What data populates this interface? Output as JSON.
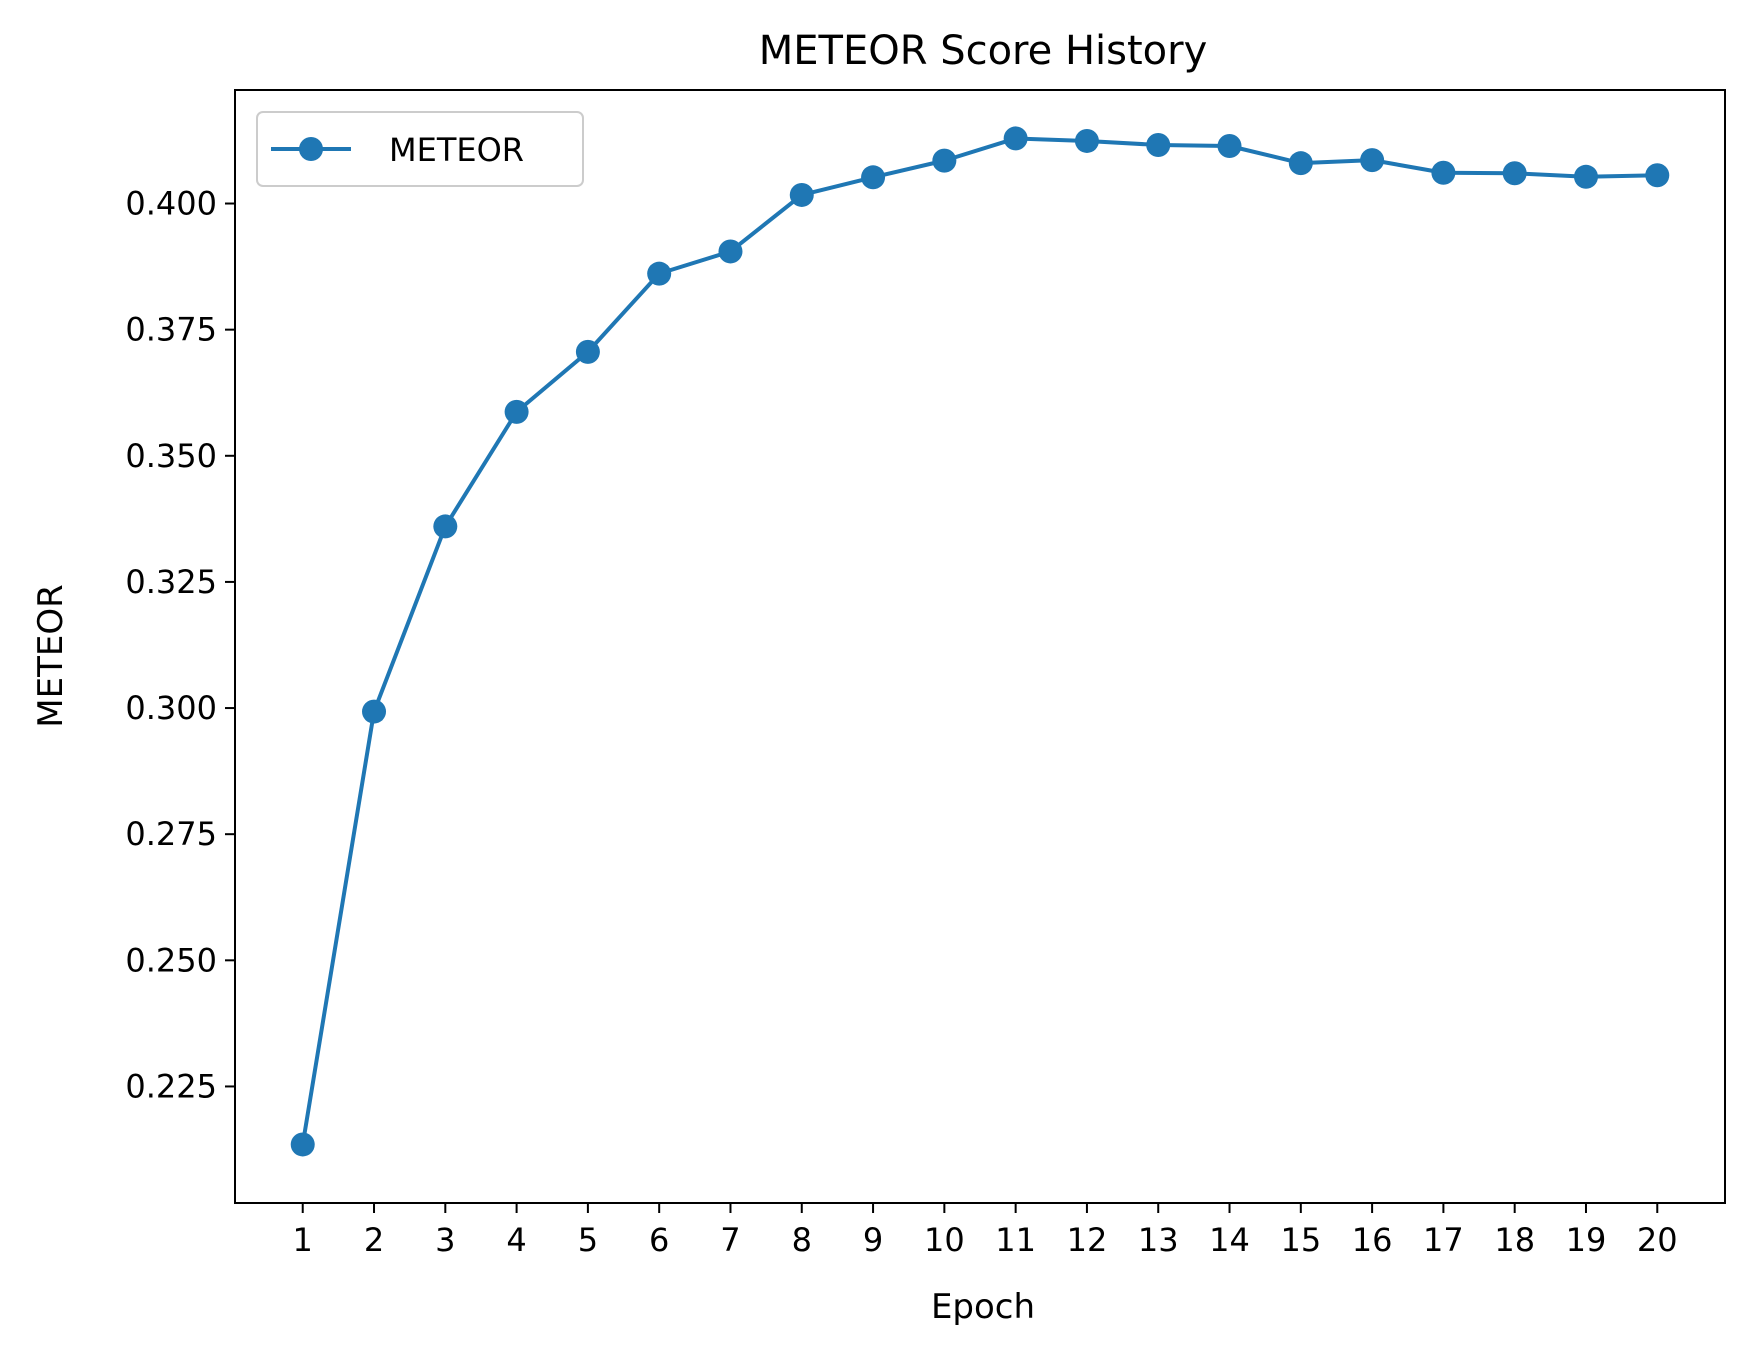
{
  "chart_data": {
    "type": "line",
    "title": "METEOR Score History",
    "xlabel": "Epoch",
    "ylabel": "METEOR",
    "x": [
      1,
      2,
      3,
      4,
      5,
      6,
      7,
      8,
      9,
      10,
      11,
      12,
      13,
      14,
      15,
      16,
      17,
      18,
      19,
      20
    ],
    "x_ticks": [
      "1",
      "2",
      "3",
      "4",
      "5",
      "6",
      "7",
      "8",
      "9",
      "10",
      "11",
      "12",
      "13",
      "14",
      "15",
      "16",
      "17",
      "18",
      "19",
      "20"
    ],
    "y_ticks": [
      "0.225",
      "0.250",
      "0.275",
      "0.300",
      "0.325",
      "0.350",
      "0.375",
      "0.400"
    ],
    "y_tick_values": [
      0.225,
      0.25,
      0.275,
      0.3,
      0.325,
      0.35,
      0.375,
      0.4
    ],
    "xlim": [
      0.05,
      20.95
    ],
    "ylim": [
      0.2019,
      0.4225
    ],
    "grid": false,
    "legend_position": "top-left",
    "series": [
      {
        "name": "METEOR",
        "color": "#1f77b4",
        "marker": "circle",
        "values": [
          0.2135,
          0.2993,
          0.336,
          0.3587,
          0.3706,
          0.3861,
          0.3905,
          0.4017,
          0.4052,
          0.4085,
          0.4129,
          0.4124,
          0.4116,
          0.4114,
          0.408,
          0.4086,
          0.4061,
          0.406,
          0.4053,
          0.4056
        ]
      }
    ]
  }
}
